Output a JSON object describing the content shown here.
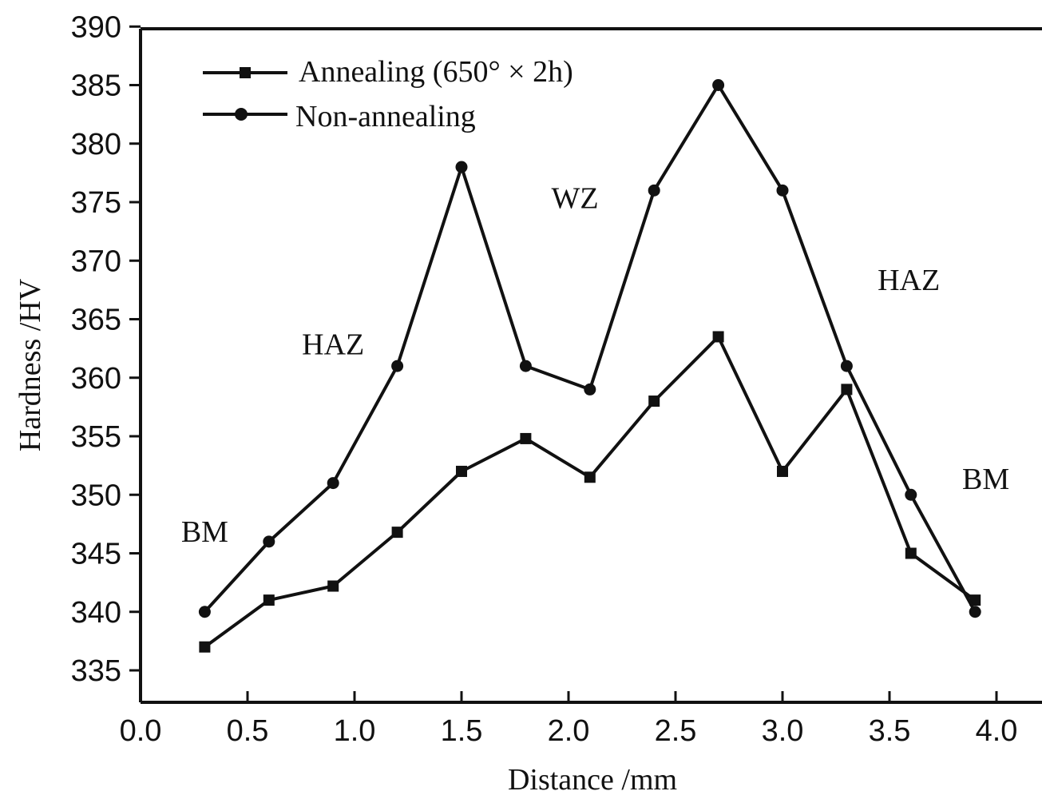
{
  "chart_data": {
    "type": "line",
    "title": "",
    "xlabel": "Distance /mm",
    "ylabel": "Hardness /HV",
    "xlim": [
      0.0,
      4.0
    ],
    "ylim": [
      333,
      390
    ],
    "xticks": [
      0.0,
      0.5,
      1.0,
      1.5,
      2.0,
      2.5,
      3.0,
      3.5,
      4.0
    ],
    "xtick_labels": [
      "0.0",
      "0.5",
      "1.0",
      "1.5",
      "2.0",
      "2.5",
      "3.0",
      "3.5",
      "4.0"
    ],
    "yticks": [
      335,
      340,
      345,
      350,
      355,
      360,
      365,
      370,
      375,
      380,
      385,
      390
    ],
    "ytick_labels": [
      "335",
      "340",
      "345",
      "350",
      "355",
      "360",
      "365",
      "370",
      "375",
      "380",
      "385",
      "390"
    ],
    "grid": false,
    "legend_position": "top-left",
    "x": [
      0.3,
      0.6,
      0.9,
      1.2,
      1.5,
      1.8,
      2.1,
      2.4,
      2.7,
      3.0,
      3.3,
      3.6,
      3.9
    ],
    "series": [
      {
        "name": "Annealing (650° × 2h)",
        "marker": "square",
        "values": [
          337,
          341,
          342.2,
          346.8,
          352,
          354.8,
          351.5,
          358,
          363.5,
          352,
          359,
          345,
          341
        ]
      },
      {
        "name": "Non-annealing",
        "marker": "circle",
        "values": [
          340,
          346,
          351,
          361,
          378,
          361,
          359,
          376,
          385,
          376,
          361,
          350,
          340
        ]
      }
    ],
    "annotations": [
      {
        "text": "BM",
        "x": 0.3,
        "y": 346
      },
      {
        "text": "HAZ",
        "x": 0.9,
        "y": 362
      },
      {
        "text": "WZ",
        "x": 2.03,
        "y": 374.5
      },
      {
        "text": "HAZ",
        "x": 3.59,
        "y": 367.5
      },
      {
        "text": "BM",
        "x": 3.95,
        "y": 350.5
      }
    ]
  }
}
